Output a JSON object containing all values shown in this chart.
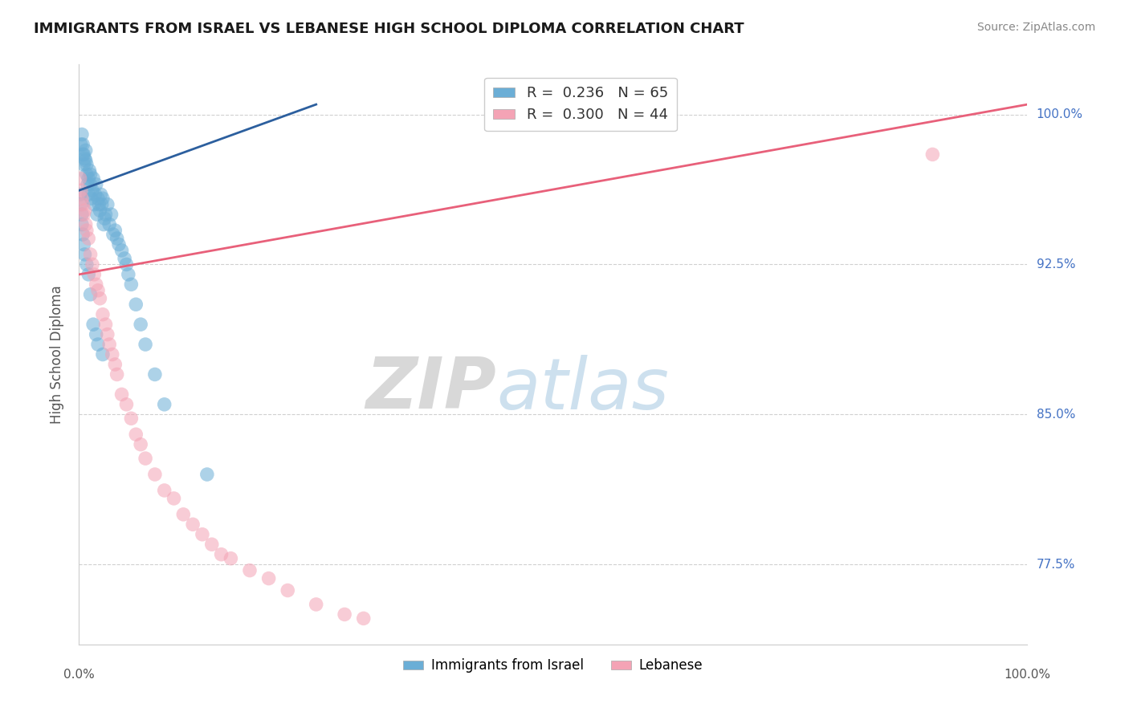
{
  "title": "IMMIGRANTS FROM ISRAEL VS LEBANESE HIGH SCHOOL DIPLOMA CORRELATION CHART",
  "source": "Source: ZipAtlas.com",
  "ylabel": "High School Diploma",
  "legend_label1": "Immigrants from Israel",
  "legend_label2": "Lebanese",
  "R1": 0.236,
  "N1": 65,
  "R2": 0.3,
  "N2": 44,
  "color_israel": "#6baed6",
  "color_lebanon": "#f4a3b5",
  "color_israel_line": "#2c5f9e",
  "color_lebanon_line": "#e8607a",
  "watermark_zip": "ZIP",
  "watermark_atlas": "atlas",
  "ytick_positions": [
    0.775,
    0.85,
    0.925,
    1.0
  ],
  "ytick_labels": [
    "77.5%",
    "85.0%",
    "92.5%",
    "100.0%"
  ],
  "xlim": [
    0.0,
    1.0
  ],
  "ylim": [
    0.735,
    1.025
  ],
  "israel_x": [
    0.002,
    0.003,
    0.004,
    0.004,
    0.005,
    0.005,
    0.006,
    0.007,
    0.007,
    0.008,
    0.008,
    0.009,
    0.01,
    0.01,
    0.011,
    0.012,
    0.012,
    0.013,
    0.014,
    0.015,
    0.016,
    0.017,
    0.018,
    0.019,
    0.02,
    0.021,
    0.022,
    0.023,
    0.024,
    0.025,
    0.026,
    0.027,
    0.028,
    0.03,
    0.032,
    0.034,
    0.036,
    0.038,
    0.04,
    0.042,
    0.045,
    0.048,
    0.05,
    0.052,
    0.055,
    0.06,
    0.065,
    0.07,
    0.08,
    0.09,
    0.001,
    0.002,
    0.003,
    0.003,
    0.004,
    0.005,
    0.006,
    0.008,
    0.01,
    0.012,
    0.015,
    0.018,
    0.02,
    0.025,
    0.135
  ],
  "israel_y": [
    0.985,
    0.99,
    0.985,
    0.98,
    0.98,
    0.975,
    0.978,
    0.982,
    0.977,
    0.975,
    0.97,
    0.965,
    0.968,
    0.96,
    0.972,
    0.965,
    0.97,
    0.958,
    0.962,
    0.968,
    0.955,
    0.96,
    0.965,
    0.95,
    0.958,
    0.955,
    0.952,
    0.96,
    0.955,
    0.958,
    0.945,
    0.948,
    0.95,
    0.955,
    0.945,
    0.95,
    0.94,
    0.942,
    0.938,
    0.935,
    0.932,
    0.928,
    0.925,
    0.92,
    0.915,
    0.905,
    0.895,
    0.885,
    0.87,
    0.855,
    0.96,
    0.955,
    0.95,
    0.945,
    0.94,
    0.935,
    0.93,
    0.925,
    0.92,
    0.91,
    0.895,
    0.89,
    0.885,
    0.88,
    0.82
  ],
  "lebanon_x": [
    0.001,
    0.002,
    0.003,
    0.004,
    0.005,
    0.006,
    0.007,
    0.008,
    0.01,
    0.012,
    0.014,
    0.016,
    0.018,
    0.02,
    0.022,
    0.025,
    0.028,
    0.03,
    0.032,
    0.035,
    0.038,
    0.04,
    0.045,
    0.05,
    0.055,
    0.06,
    0.065,
    0.07,
    0.08,
    0.09,
    0.1,
    0.11,
    0.12,
    0.13,
    0.14,
    0.15,
    0.16,
    0.18,
    0.2,
    0.22,
    0.25,
    0.28,
    0.3,
    0.9
  ],
  "lebanon_y": [
    0.968,
    0.962,
    0.958,
    0.955,
    0.95,
    0.952,
    0.945,
    0.942,
    0.938,
    0.93,
    0.925,
    0.92,
    0.915,
    0.912,
    0.908,
    0.9,
    0.895,
    0.89,
    0.885,
    0.88,
    0.875,
    0.87,
    0.86,
    0.855,
    0.848,
    0.84,
    0.835,
    0.828,
    0.82,
    0.812,
    0.808,
    0.8,
    0.795,
    0.79,
    0.785,
    0.78,
    0.778,
    0.772,
    0.768,
    0.762,
    0.755,
    0.75,
    0.748,
    0.98
  ],
  "grid_color": "#d0d0d0",
  "background_color": "#ffffff",
  "israel_line_x0": 0.0,
  "israel_line_y0": 0.962,
  "israel_line_x1": 0.25,
  "israel_line_y1": 1.005,
  "lebanon_line_x0": 0.0,
  "lebanon_line_y0": 0.92,
  "lebanon_line_x1": 1.0,
  "lebanon_line_y1": 1.005
}
